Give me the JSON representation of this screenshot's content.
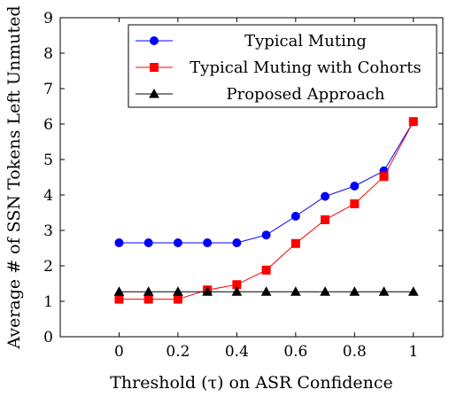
{
  "chart_data": {
    "type": "line",
    "xlabel": "Threshold (τ) on ASR Confidence",
    "ylabel": "Average # of SSN Tokens Left Unmuted",
    "xlim": [
      -0.2,
      1.1
    ],
    "ylim": [
      0,
      9
    ],
    "x_ticks": [
      "0",
      "0.2",
      "0.4",
      "0.6",
      "0.8",
      "1"
    ],
    "y_ticks": [
      "0",
      "1",
      "2",
      "3",
      "4",
      "5",
      "6",
      "7",
      "8",
      "9"
    ],
    "grid": false,
    "legend_position": "top-right",
    "x": [
      0,
      0.1,
      0.2,
      0.3,
      0.4,
      0.5,
      0.6,
      0.7,
      0.8,
      0.9,
      1.0
    ],
    "series": [
      {
        "name": "Typical Muting",
        "color": "#0000ff",
        "marker": "circle",
        "values": [
          2.65,
          2.65,
          2.65,
          2.65,
          2.65,
          2.87,
          3.4,
          3.96,
          4.25,
          4.68,
          6.07
        ]
      },
      {
        "name": "Typical Muting with Cohorts",
        "color": "#ff0000",
        "marker": "square",
        "values": [
          1.06,
          1.06,
          1.06,
          1.32,
          1.47,
          1.88,
          2.63,
          3.3,
          3.75,
          4.52,
          6.07
        ]
      },
      {
        "name": "Proposed Approach",
        "color": "#000000",
        "marker": "triangle",
        "values": [
          1.27,
          1.27,
          1.27,
          1.27,
          1.27,
          1.27,
          1.27,
          1.27,
          1.27,
          1.27,
          1.27
        ]
      }
    ]
  }
}
